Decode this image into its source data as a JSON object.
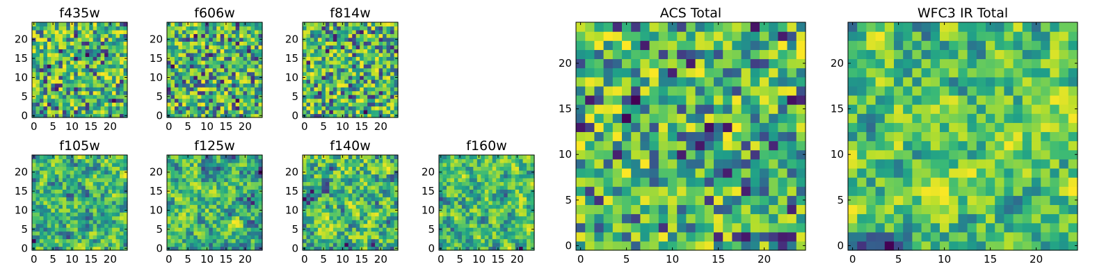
{
  "figure": {
    "description_colormap": "viridis"
  },
  "chart_data": [
    {
      "type": "heatmap",
      "title": "f435w",
      "grid_size": 25,
      "xlim": [
        0,
        24
      ],
      "ylim": [
        0,
        24
      ],
      "xticks": [
        "0",
        "5",
        "10",
        "15",
        "20"
      ],
      "yticks": [
        "0",
        "5",
        "10",
        "15",
        "20"
      ],
      "seed": 11,
      "style": "noise"
    },
    {
      "type": "heatmap",
      "title": "f606w",
      "grid_size": 25,
      "xlim": [
        0,
        24
      ],
      "ylim": [
        0,
        24
      ],
      "xticks": [
        "0",
        "5",
        "10",
        "15",
        "20"
      ],
      "yticks": [
        "0",
        "5",
        "10",
        "15",
        "20"
      ],
      "seed": 23,
      "style": "noise"
    },
    {
      "type": "heatmap",
      "title": "f814w",
      "grid_size": 25,
      "xlim": [
        0,
        24
      ],
      "ylim": [
        0,
        24
      ],
      "xticks": [
        "0",
        "5",
        "10",
        "15",
        "20"
      ],
      "yticks": [
        "0",
        "5",
        "10",
        "15",
        "20"
      ],
      "seed": 37,
      "style": "noise"
    },
    {
      "type": "heatmap",
      "title": "f105w",
      "grid_size": 25,
      "xlim": [
        0,
        24
      ],
      "ylim": [
        0,
        24
      ],
      "xticks": [
        "0",
        "5",
        "10",
        "15",
        "20"
      ],
      "yticks": [
        "0",
        "5",
        "10",
        "15",
        "20"
      ],
      "seed": 41,
      "style": "smooth"
    },
    {
      "type": "heatmap",
      "title": "f125w",
      "grid_size": 25,
      "xlim": [
        0,
        24
      ],
      "ylim": [
        0,
        24
      ],
      "xticks": [
        "0",
        "5",
        "10",
        "15",
        "20"
      ],
      "yticks": [
        "0",
        "5",
        "10",
        "15",
        "20"
      ],
      "seed": 53,
      "style": "smooth"
    },
    {
      "type": "heatmap",
      "title": "f140w",
      "grid_size": 25,
      "xlim": [
        0,
        24
      ],
      "ylim": [
        0,
        24
      ],
      "xticks": [
        "0",
        "5",
        "10",
        "15",
        "20"
      ],
      "yticks": [
        "0",
        "5",
        "10",
        "15",
        "20"
      ],
      "seed": 67,
      "style": "smooth"
    },
    {
      "type": "heatmap",
      "title": "f160w",
      "grid_size": 25,
      "xlim": [
        0,
        24
      ],
      "ylim": [
        0,
        24
      ],
      "xticks": [
        "0",
        "5",
        "10",
        "15",
        "20"
      ],
      "yticks": [
        "0",
        "5",
        "10",
        "15",
        "20"
      ],
      "seed": 79,
      "style": "smooth"
    },
    {
      "type": "heatmap",
      "title": "ACS Total",
      "grid_size": 25,
      "xlim": [
        0,
        24
      ],
      "ylim": [
        0,
        24
      ],
      "xticks": [
        "0",
        "5",
        "10",
        "15",
        "20"
      ],
      "yticks": [
        "0",
        "5",
        "10",
        "15",
        "20"
      ],
      "seed": 83,
      "style": "noise"
    },
    {
      "type": "heatmap",
      "title": "WFC3 IR Total",
      "grid_size": 25,
      "xlim": [
        0,
        24
      ],
      "ylim": [
        0,
        24
      ],
      "xticks": [
        "0",
        "5",
        "10",
        "15",
        "20"
      ],
      "yticks": [
        "0",
        "5",
        "10",
        "15",
        "20"
      ],
      "seed": 97,
      "style": "smooth"
    }
  ]
}
